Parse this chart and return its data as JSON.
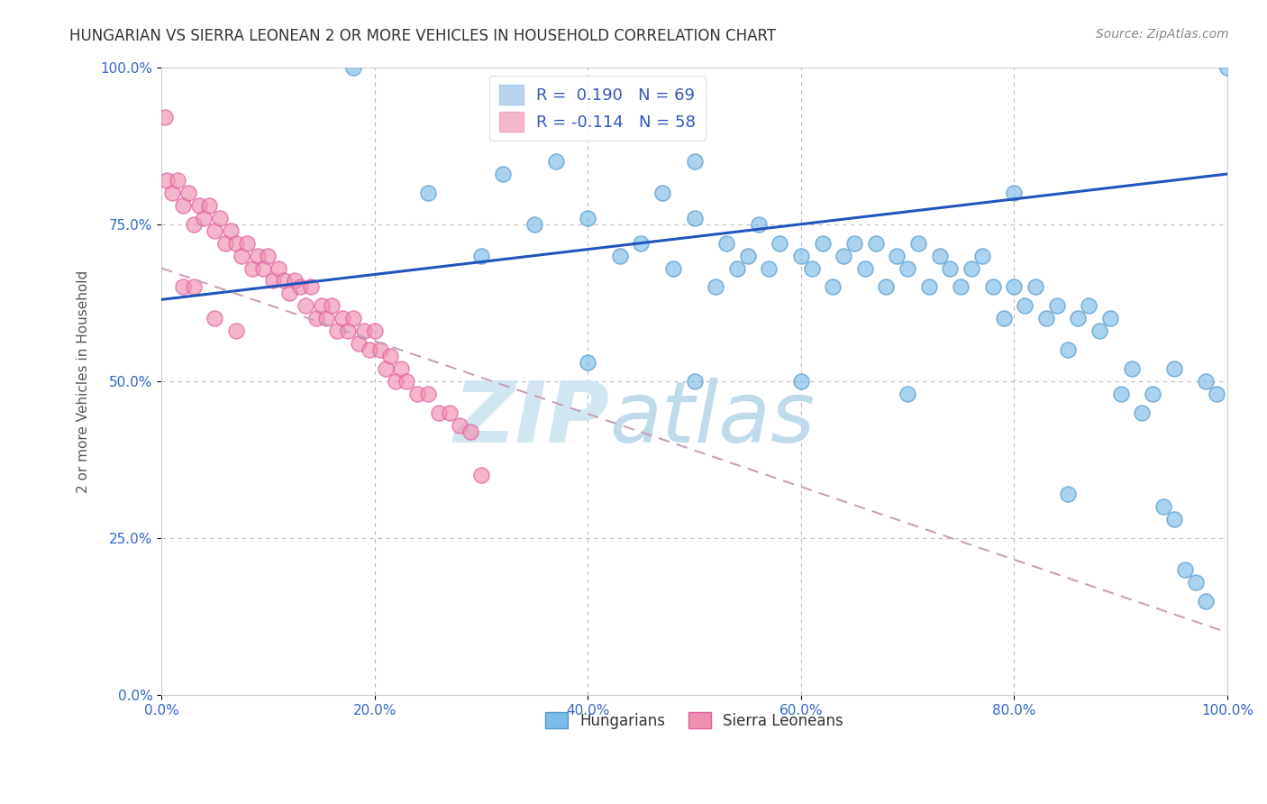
{
  "title": "HUNGARIAN VS SIERRA LEONEAN 2 OR MORE VEHICLES IN HOUSEHOLD CORRELATION CHART",
  "ylabel": "2 or more Vehicles in Household",
  "source_text": "Source: ZipAtlas.com",
  "watermark": "ZIPatlas",
  "xlim": [
    0,
    100
  ],
  "ylim": [
    0,
    100
  ],
  "xtick_labels": [
    "0.0%",
    "20.0%",
    "40.0%",
    "60.0%",
    "80.0%",
    "100.0%"
  ],
  "ytick_labels": [
    "0.0%",
    "25.0%",
    "50.0%",
    "75.0%",
    "100.0%"
  ],
  "ytick_values": [
    0,
    25,
    50,
    75,
    100
  ],
  "xtick_values": [
    0,
    20,
    40,
    60,
    80,
    100
  ],
  "legend_entries": [
    {
      "label": "R =  0.190   N = 69",
      "color": "#b8d4ee"
    },
    {
      "label": "R = -0.114   N = 58",
      "color": "#f4b8c8"
    }
  ],
  "legend_R_color": "#3355bb",
  "hungarian_color": "#7bbce8",
  "hungarian_edge_color": "#5599cc",
  "sierra_leonean_color": "#f090b0",
  "sierra_leonean_edge_color": "#e060a0",
  "hungarian_line_color": "#2255bb",
  "sierra_leonean_line_color": "#c8a0b8",
  "background_color": "#ffffff",
  "hungarian_line": {
    "x0": 0,
    "y0": 63,
    "x1": 100,
    "y1": 83
  },
  "sierra_line": {
    "x0": 0,
    "y0": 68,
    "x1": 100,
    "y1": 10
  },
  "hungarian_x": [
    18,
    25,
    30,
    32,
    35,
    37,
    40,
    43,
    45,
    47,
    48,
    50,
    50,
    52,
    53,
    54,
    55,
    56,
    57,
    58,
    60,
    61,
    62,
    63,
    64,
    65,
    66,
    67,
    68,
    69,
    70,
    71,
    72,
    73,
    74,
    75,
    76,
    77,
    78,
    79,
    80,
    81,
    82,
    83,
    84,
    85,
    86,
    87,
    88,
    89,
    90,
    91,
    92,
    93,
    94,
    95,
    96,
    97,
    98,
    99,
    100,
    40,
    50,
    60,
    70,
    80,
    85,
    95,
    98
  ],
  "hungarian_y": [
    100,
    80,
    70,
    83,
    75,
    85,
    76,
    70,
    72,
    80,
    68,
    85,
    76,
    65,
    72,
    68,
    70,
    75,
    68,
    72,
    70,
    68,
    72,
    65,
    70,
    72,
    68,
    72,
    65,
    70,
    68,
    72,
    65,
    70,
    68,
    65,
    68,
    70,
    65,
    60,
    65,
    62,
    65,
    60,
    62,
    55,
    60,
    62,
    58,
    60,
    48,
    52,
    45,
    48,
    30,
    28,
    20,
    18,
    15,
    48,
    100,
    53,
    50,
    50,
    48,
    80,
    32,
    52,
    50
  ],
  "sierra_leonean_x": [
    0.3,
    0.5,
    1.0,
    1.5,
    2.0,
    2.5,
    3.0,
    3.5,
    4.0,
    4.5,
    5.0,
    5.5,
    6.0,
    6.5,
    7.0,
    7.5,
    8.0,
    8.5,
    9.0,
    9.5,
    10.0,
    10.5,
    11.0,
    11.5,
    12.0,
    12.5,
    13.0,
    13.5,
    14.0,
    14.5,
    15.0,
    15.5,
    16.0,
    16.5,
    17.0,
    17.5,
    18.0,
    18.5,
    19.0,
    19.5,
    20.0,
    20.5,
    21.0,
    21.5,
    22.0,
    22.5,
    23.0,
    24.0,
    25.0,
    26.0,
    27.0,
    28.0,
    29.0,
    30.0,
    2.0,
    3.0,
    5.0,
    7.0
  ],
  "sierra_leonean_y": [
    92,
    82,
    80,
    82,
    78,
    80,
    75,
    78,
    76,
    78,
    74,
    76,
    72,
    74,
    72,
    70,
    72,
    68,
    70,
    68,
    70,
    66,
    68,
    66,
    64,
    66,
    65,
    62,
    65,
    60,
    62,
    60,
    62,
    58,
    60,
    58,
    60,
    56,
    58,
    55,
    58,
    55,
    52,
    54,
    50,
    52,
    50,
    48,
    48,
    45,
    45,
    43,
    42,
    35,
    65,
    65,
    60,
    58
  ]
}
